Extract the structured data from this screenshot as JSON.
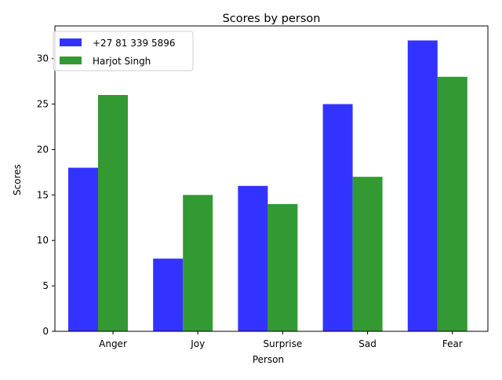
{
  "chart_data": {
    "type": "bar",
    "title": "Scores by person",
    "xlabel": "Person",
    "ylabel": "Scores",
    "categories": [
      "Anger",
      "Joy",
      "Surprise",
      "Sad",
      "Fear"
    ],
    "series": [
      {
        "name": "+27 81 339 5896",
        "values": [
          18,
          8,
          16,
          25,
          32
        ],
        "color": "#3333ff"
      },
      {
        "name": "Harjot Singh",
        "values": [
          26,
          15,
          14,
          17,
          28
        ],
        "color": "#339933"
      }
    ],
    "ylim": [
      0,
      33.6
    ],
    "yticks": [
      0,
      5,
      10,
      15,
      20,
      25,
      30
    ],
    "grid": false,
    "legend": "top-left"
  }
}
